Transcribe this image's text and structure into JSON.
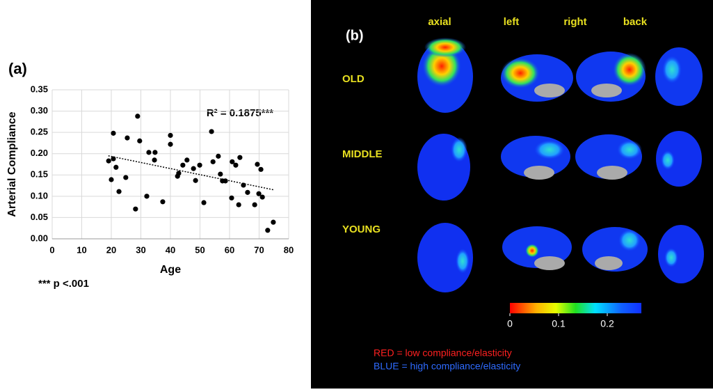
{
  "chart_data": {
    "type": "scatter",
    "title": "(a)",
    "xlabel": "Age",
    "ylabel": "Arterial Compliance",
    "annotation": "R² = 0.1875***",
    "note": "*** p <.001",
    "color": "#000000",
    "grid": true,
    "xlim": [
      0,
      80
    ],
    "xticks": [
      0,
      10,
      20,
      30,
      40,
      50,
      60,
      70,
      80
    ],
    "ylim": [
      0,
      0.35
    ],
    "yticks": [
      {
        "value": 0,
        "label": "0.00"
      },
      {
        "value": 0.05,
        "label": "0.05"
      },
      {
        "value": 0.1,
        "label": "0.10"
      },
      {
        "value": 0.15,
        "label": "0.15"
      },
      {
        "value": 0.2,
        "label": "0.20"
      },
      {
        "value": 0.25,
        "label": "0.25"
      },
      {
        "value": 0.3,
        "label": "0.30"
      },
      {
        "value": 0.35,
        "label": "0.35"
      }
    ],
    "x": [
      19.1,
      20.0,
      20.7,
      20.7,
      21.6,
      22.6,
      24.9,
      25.4,
      28.2,
      28.9,
      29.6,
      32.0,
      32.7,
      34.8,
      34.6,
      37.4,
      40.0,
      40.0,
      42.4,
      42.8,
      44.2,
      45.6,
      47.8,
      48.5,
      49.9,
      51.3,
      53.9,
      54.4,
      56.2,
      56.9,
      57.6,
      58.6,
      60.7,
      60.9,
      62.1,
      63.5,
      63.1,
      64.7,
      66.1,
      68.5,
      69.4,
      69.9,
      70.6,
      71.1,
      72.9,
      74.8
    ],
    "values": [
      0.183,
      0.139,
      0.248,
      0.188,
      0.168,
      0.111,
      0.144,
      0.237,
      0.07,
      0.288,
      0.23,
      0.1,
      0.203,
      0.203,
      0.185,
      0.087,
      0.243,
      0.222,
      0.147,
      0.154,
      0.173,
      0.185,
      0.165,
      0.137,
      0.173,
      0.085,
      0.252,
      0.181,
      0.194,
      0.152,
      0.136,
      0.136,
      0.096,
      0.181,
      0.173,
      0.191,
      0.08,
      0.126,
      0.109,
      0.08,
      0.175,
      0.106,
      0.163,
      0.098,
      0.02,
      0.039
    ],
    "trendline": {
      "x": [
        19,
        75
      ],
      "values": [
        0.195,
        0.115
      ]
    }
  },
  "panel_b": {
    "label": "(b)",
    "views": [
      "axial",
      "left",
      "right",
      "back"
    ],
    "groups": [
      "OLD",
      "MIDDLE",
      "YOUNG"
    ],
    "colorbar": {
      "lim": [
        0,
        0.27
      ],
      "ticks": [
        0,
        0.1,
        0.2
      ]
    },
    "notes": [
      {
        "text": "RED = low compliance/elasticity",
        "color": "#ff2020"
      },
      {
        "text": "BLUE = high compliance/elasticity",
        "color": "#2e6bff"
      }
    ]
  }
}
